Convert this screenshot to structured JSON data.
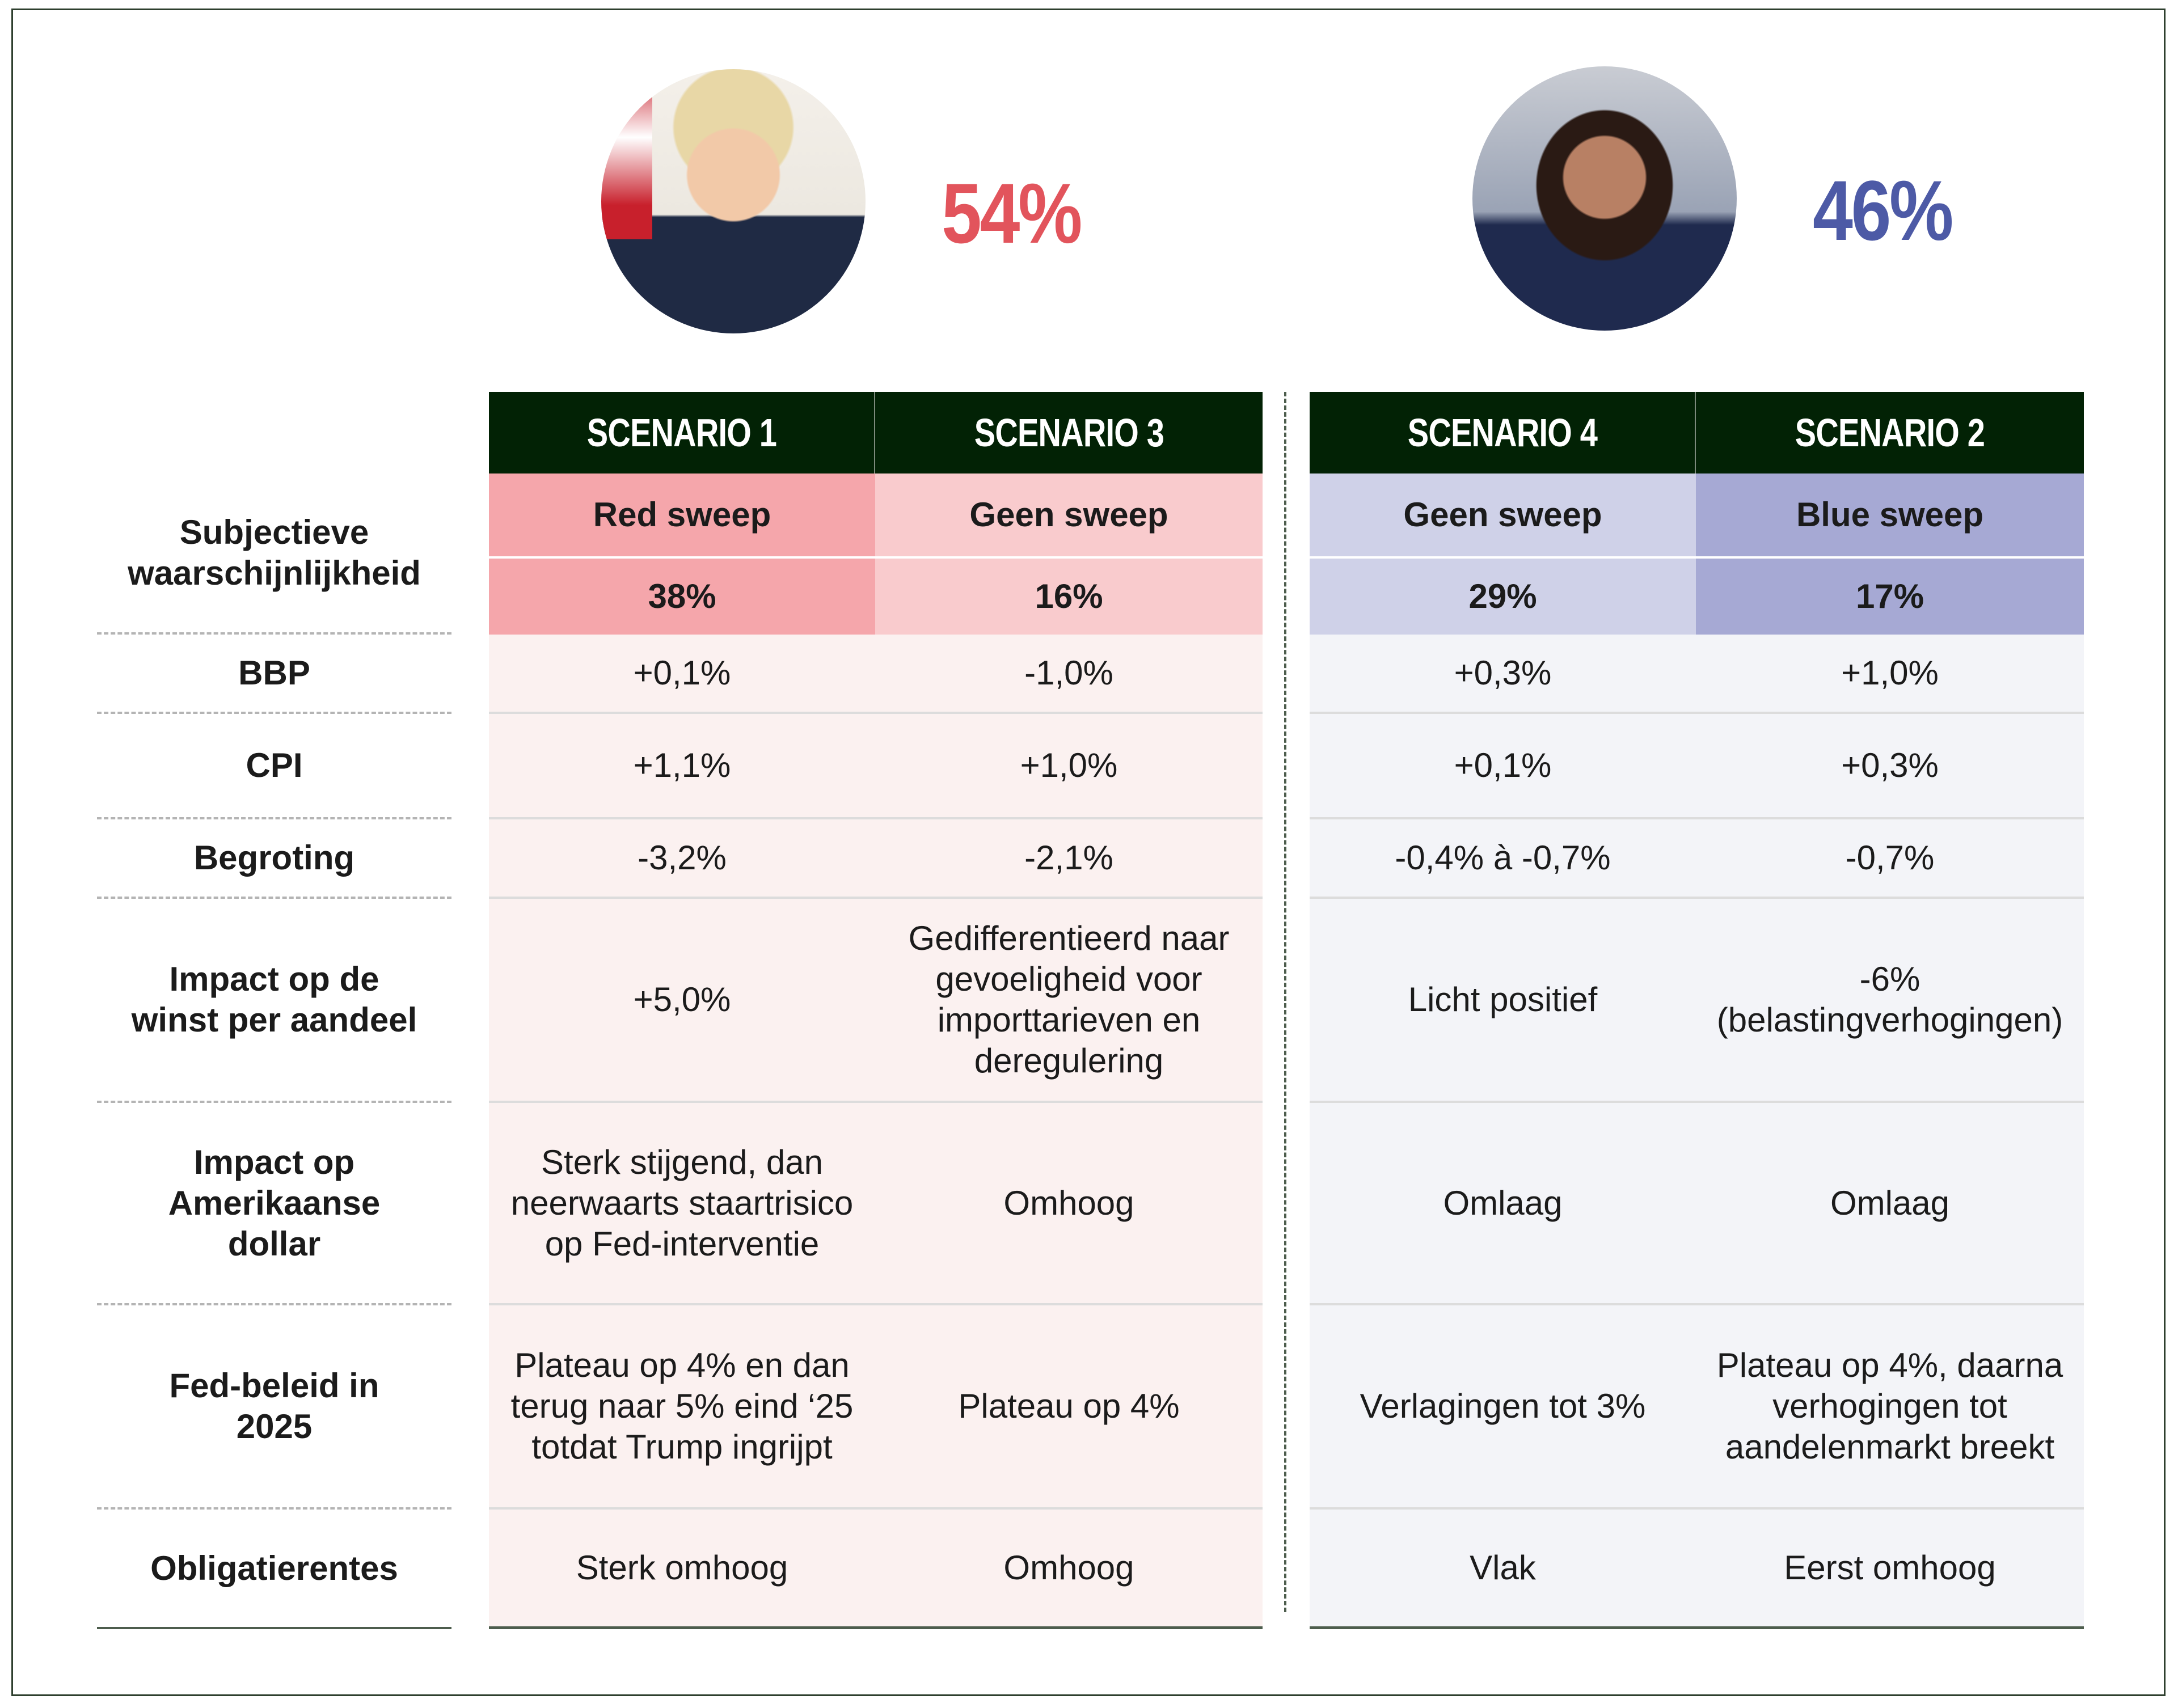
{
  "candidates": [
    {
      "name": "Trump",
      "probability": "54%",
      "color": "#e2545c"
    },
    {
      "name": "Harris",
      "probability": "46%",
      "color": "#4d5aa6"
    }
  ],
  "scenarios": [
    {
      "header": "SCENARIO 1",
      "sweep": "Red sweep",
      "probability": "38%"
    },
    {
      "header": "SCENARIO 3",
      "sweep": "Geen sweep",
      "probability": "16%"
    },
    {
      "header": "SCENARIO 4",
      "sweep": "Geen sweep",
      "probability": "29%"
    },
    {
      "header": "SCENARIO 2",
      "sweep": "Blue sweep",
      "probability": "17%"
    }
  ],
  "probability_label": "Subjectieve waarschijnlijkheid",
  "rows": [
    {
      "label": "BBP",
      "values": [
        "+0,1%",
        "-1,0%",
        "+0,3%",
        "+1,0%"
      ]
    },
    {
      "label": "CPI",
      "values": [
        "+1,1%",
        "+1,0%",
        "+0,1%",
        "+0,3%"
      ]
    },
    {
      "label": "Begroting",
      "values": [
        "-3,2%",
        "-2,1%",
        "-0,4% à -0,7%",
        "-0,7%"
      ]
    },
    {
      "label": "Impact op de winst per aandeel",
      "values": [
        "+5,0%",
        "Gedifferentieerd naar gevoeligheid voor importtarieven en deregulering",
        "Licht positief",
        "-6% (belastingverhogingen)"
      ]
    },
    {
      "label": "Impact op Amerikaanse dollar",
      "values": [
        "Sterk stijgend, dan neerwaarts staartrisico op Fed-interventie",
        "Omhoog",
        "Omlaag",
        "Omlaag"
      ]
    },
    {
      "label": "Fed-beleid in 2025",
      "values": [
        "Plateau op 4% en dan terug naar 5% eind ‘25 totdat Trump ingrijpt",
        "Plateau op 4%",
        "Verlagingen tot 3%",
        "Plateau op 4%, daarna verhogingen tot aandelenmarkt breekt"
      ]
    },
    {
      "label": "Obligatierentes",
      "values": [
        "Sterk omhoog",
        "Omhoog",
        "Vlak",
        "Eerst omhoog"
      ]
    }
  ]
}
